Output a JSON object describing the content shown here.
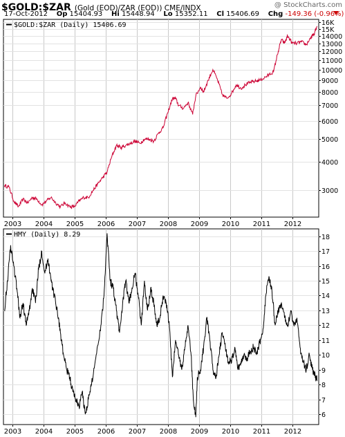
{
  "header": {
    "symbol": "$GOLD:$ZAR",
    "description": "(Gold (EOD)/ZAR (EOD)) CME/INDX",
    "brand": "@ StockCharts.com",
    "date": "17-Oct-2012",
    "op_label": "Op",
    "op": "15404.93",
    "hi_label": "Hi",
    "hi": "15448.94",
    "lo_label": "Lo",
    "lo": "15352.11",
    "cl_label": "Cl",
    "cl": "15406.69",
    "chg_label": "Chg",
    "chg": "-149.36 (-0.96%)",
    "chg_color": "#cc0000"
  },
  "chart_data": [
    {
      "type": "line",
      "scale": "log",
      "legend": "$GOLD:$ZAR (Daily) 15406.69",
      "legend_position": "top-left",
      "color": "#cc0033",
      "grid": true,
      "yticks": [
        {
          "value": 16000,
          "label": "16K"
        },
        {
          "value": 15000,
          "label": "15K"
        },
        {
          "value": 14000,
          "label": "14000"
        },
        {
          "value": 13000,
          "label": "13000"
        },
        {
          "value": 12000,
          "label": "12000"
        },
        {
          "value": 11000,
          "label": "11000"
        },
        {
          "value": 10000,
          "label": "10000"
        },
        {
          "value": 9000,
          "label": "9000"
        },
        {
          "value": 8000,
          "label": "8000"
        },
        {
          "value": 7000,
          "label": "7000"
        },
        {
          "value": 6000,
          "label": "6000"
        },
        {
          "value": 5000,
          "label": "5000"
        },
        {
          "value": 4000,
          "label": "4000"
        },
        {
          "value": 3000,
          "label": "3000"
        }
      ],
      "ylim": [
        2300,
        16500
      ],
      "x": [
        2002.75,
        2002.9,
        2003.05,
        2003.2,
        2003.35,
        2003.5,
        2003.65,
        2003.8,
        2003.95,
        2004.1,
        2004.25,
        2004.4,
        2004.55,
        2004.7,
        2004.85,
        2005.0,
        2005.15,
        2005.3,
        2005.45,
        2005.6,
        2005.75,
        2005.9,
        2006.05,
        2006.2,
        2006.35,
        2006.5,
        2006.65,
        2006.8,
        2006.95,
        2007.1,
        2007.25,
        2007.4,
        2007.55,
        2007.7,
        2007.85,
        2008.0,
        2008.15,
        2008.25,
        2008.35,
        2008.5,
        2008.65,
        2008.8,
        2008.9,
        2009.05,
        2009.15,
        2009.3,
        2009.45,
        2009.6,
        2009.75,
        2009.9,
        2010.05,
        2010.2,
        2010.35,
        2010.5,
        2010.65,
        2010.8,
        2010.95,
        2011.1,
        2011.25,
        2011.4,
        2011.55,
        2011.65,
        2011.75,
        2011.85,
        2012.0,
        2012.15,
        2012.3,
        2012.45,
        2012.6,
        2012.7,
        2012.8
      ],
      "values": [
        3150,
        3100,
        2700,
        2550,
        2750,
        2650,
        2800,
        2750,
        2600,
        2700,
        2800,
        2650,
        2550,
        2650,
        2550,
        2550,
        2700,
        2800,
        2800,
        3000,
        3200,
        3400,
        3600,
        4200,
        4700,
        4600,
        4700,
        4800,
        4900,
        4800,
        5000,
        5000,
        4900,
        5300,
        5600,
        6500,
        7500,
        7500,
        7000,
        6800,
        7200,
        6400,
        7700,
        8400,
        8000,
        9000,
        10000,
        9000,
        7800,
        7500,
        7900,
        8600,
        8300,
        8600,
        8800,
        8900,
        9000,
        9200,
        9500,
        9800,
        12000,
        13500,
        13000,
        14000,
        13000,
        13000,
        13200,
        12800,
        13800,
        14200,
        15400
      ]
    },
    {
      "type": "line",
      "scale": "linear",
      "legend": "HMY (Daily) 8.29",
      "legend_position": "top-left",
      "color": "#000000",
      "grid": true,
      "ylim": [
        5.3,
        18.5
      ],
      "yticks": [
        6,
        7,
        8,
        9,
        10,
        11,
        12,
        13,
        14,
        15,
        16,
        17,
        18
      ],
      "x": [
        2002.75,
        2002.85,
        2002.95,
        2003.05,
        2003.15,
        2003.25,
        2003.35,
        2003.45,
        2003.55,
        2003.65,
        2003.75,
        2003.85,
        2003.95,
        2004.05,
        2004.15,
        2004.25,
        2004.35,
        2004.45,
        2004.55,
        2004.65,
        2004.75,
        2004.85,
        2004.95,
        2005.05,
        2005.15,
        2005.25,
        2005.35,
        2005.45,
        2005.55,
        2005.7,
        2005.85,
        2005.95,
        2006.05,
        2006.15,
        2006.25,
        2006.35,
        2006.45,
        2006.55,
        2006.65,
        2006.75,
        2006.85,
        2006.95,
        2007.05,
        2007.15,
        2007.25,
        2007.35,
        2007.45,
        2007.55,
        2007.65,
        2007.75,
        2007.85,
        2007.95,
        2008.05,
        2008.15,
        2008.25,
        2008.35,
        2008.45,
        2008.55,
        2008.65,
        2008.75,
        2008.82,
        2008.9,
        2008.95,
        2009.05,
        2009.15,
        2009.25,
        2009.35,
        2009.45,
        2009.55,
        2009.65,
        2009.75,
        2009.85,
        2009.95,
        2010.05,
        2010.15,
        2010.25,
        2010.35,
        2010.45,
        2010.55,
        2010.65,
        2010.75,
        2010.85,
        2010.95,
        2011.05,
        2011.15,
        2011.25,
        2011.35,
        2011.45,
        2011.55,
        2011.65,
        2011.75,
        2011.85,
        2011.95,
        2012.05,
        2012.15,
        2012.25,
        2012.35,
        2012.45,
        2012.55,
        2012.65,
        2012.75,
        2012.8
      ],
      "values": [
        13.0,
        15.0,
        17.4,
        16.0,
        14.5,
        12.5,
        13.5,
        12.0,
        13.0,
        14.5,
        13.5,
        15.8,
        17.0,
        15.5,
        16.5,
        15.0,
        14.0,
        13.0,
        11.5,
        10.0,
        9.0,
        8.5,
        7.5,
        7.0,
        6.5,
        7.5,
        6.0,
        7.0,
        8.0,
        10.0,
        12.0,
        14.0,
        18.2,
        15.0,
        14.5,
        13.0,
        11.5,
        13.5,
        15.0,
        13.5,
        14.5,
        15.5,
        14.0,
        12.0,
        15.0,
        13.0,
        14.5,
        13.5,
        12.0,
        12.5,
        14.0,
        13.5,
        12.0,
        8.5,
        11.0,
        10.0,
        9.0,
        10.5,
        12.0,
        10.0,
        7.0,
        5.8,
        8.5,
        9.0,
        10.5,
        12.5,
        11.0,
        9.0,
        8.5,
        10.0,
        11.5,
        10.5,
        9.5,
        9.5,
        10.5,
        9.0,
        9.5,
        10.0,
        9.8,
        10.2,
        10.5,
        10.0,
        10.8,
        11.5,
        14.0,
        15.3,
        14.2,
        12.0,
        13.0,
        13.5,
        12.5,
        12.0,
        13.0,
        12.0,
        12.5,
        10.5,
        9.5,
        9.0,
        10.0,
        9.0,
        8.5,
        8.29
      ]
    }
  ],
  "x_axis": {
    "labels": [
      "2003",
      "2004",
      "2005",
      "2006",
      "2007",
      "2008",
      "2009",
      "2010",
      "2011",
      "2012"
    ],
    "values": [
      2003.0,
      2004.0,
      2005.0,
      2006.0,
      2007.0,
      2008.0,
      2009.0,
      2010.0,
      2011.0,
      2012.0
    ],
    "xlim": [
      2002.72,
      2012.85
    ]
  }
}
